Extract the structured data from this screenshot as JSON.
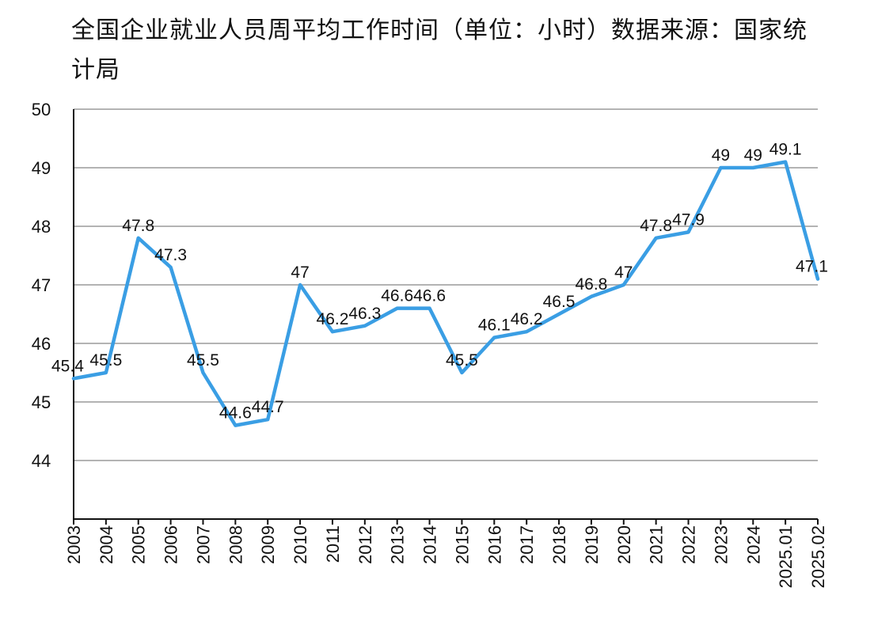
{
  "chart_data": {
    "type": "line",
    "title": "全国企业就业人员周平均工作时间（单位：小时）数据来源：国家统计局",
    "xlabel": "",
    "ylabel": "",
    "categories": [
      "2003",
      "2004",
      "2005",
      "2006",
      "2007",
      "2008",
      "2009",
      "2010",
      "2011",
      "2012",
      "2013",
      "2014",
      "2015",
      "2016",
      "2017",
      "2018",
      "2019",
      "2020",
      "2021",
      "2022",
      "2023",
      "2024",
      "2025.01",
      "2025.02"
    ],
    "series": [
      {
        "values": [
          45.4,
          45.5,
          47.8,
          47.3,
          45.5,
          44.6,
          44.7,
          47,
          46.2,
          46.3,
          46.6,
          46.6,
          45.5,
          46.1,
          46.2,
          46.5,
          46.8,
          47,
          47.8,
          47.9,
          49,
          49,
          49.1,
          47.1
        ],
        "color": "#3a9ee4"
      }
    ],
    "ylim": [
      43,
      50
    ],
    "yticks": [
      44,
      45,
      46,
      47,
      48,
      49,
      50
    ],
    "grid": true,
    "legend": "none"
  }
}
